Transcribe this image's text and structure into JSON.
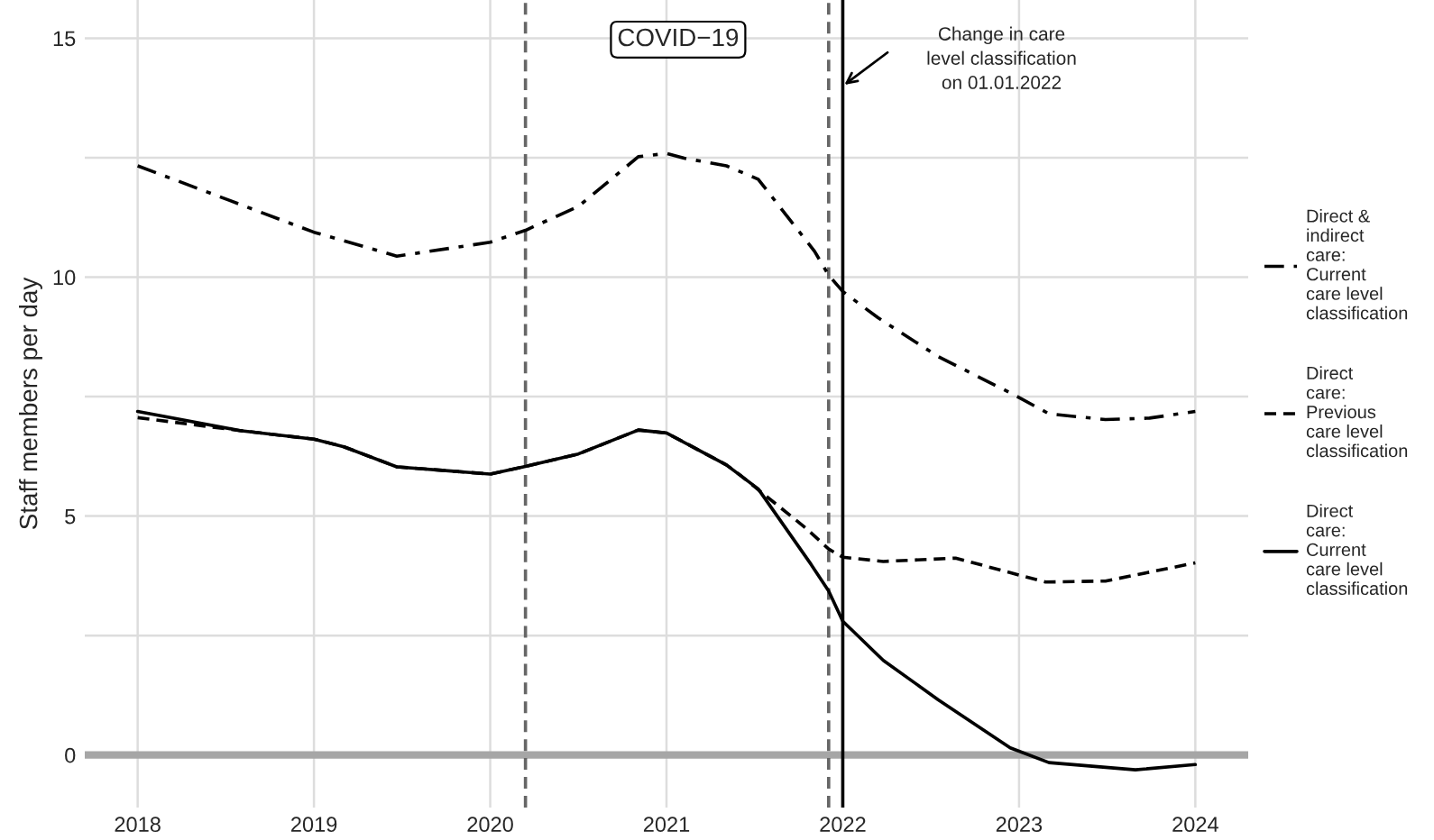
{
  "chart_data": {
    "type": "line",
    "ylabel": "Staff members per day",
    "xlim": [
      2017.7,
      2024.3
    ],
    "xticks": [
      2018,
      2019,
      2020,
      2021,
      2022,
      2023,
      2024
    ],
    "ylim": [
      -1.1,
      15.8
    ],
    "yticks": [
      0,
      {
        "value": 2.5,
        "label": null
      },
      5,
      {
        "value": 7.5,
        "label": null
      },
      10,
      {
        "value": 12.5,
        "label": null
      },
      15
    ],
    "grid": true,
    "legend": "right",
    "marker": "none",
    "series": [
      {
        "name": "Direct &\nindirect\ncare:\nCurrent\ncare level\nclassification",
        "color": "#000000",
        "line_style": "dashdot",
        "x": [
          2018.0,
          2019.0,
          2019.47,
          2020.0,
          2020.2,
          2020.5,
          2020.84,
          2021.0,
          2021.1,
          2021.34,
          2021.52,
          2021.84,
          2021.92,
          2022.0,
          2022.2,
          2022.54,
          2022.95,
          2023.17,
          2023.49,
          2023.74,
          2024.0
        ],
        "values": [
          12.33,
          10.94,
          10.44,
          10.73,
          10.98,
          11.48,
          12.52,
          12.59,
          12.49,
          12.33,
          12.05,
          10.54,
          10.04,
          9.7,
          9.15,
          8.34,
          7.58,
          7.14,
          7.02,
          7.05,
          7.19
        ]
      },
      {
        "name": "Direct\ncare:\nPrevious\ncare level\nclassification",
        "color": "#000000",
        "line_style": "dashed",
        "x": [
          2018.0,
          2018.58,
          2019.0,
          2019.17,
          2019.47,
          2020.0,
          2020.2,
          2020.5,
          2020.84,
          2021.0,
          2021.34,
          2021.41,
          2021.79,
          2021.92,
          2022.0,
          2022.23,
          2022.64,
          2023.15,
          2023.49,
          2024.0
        ],
        "values": [
          7.06,
          6.79,
          6.61,
          6.45,
          6.03,
          5.88,
          6.04,
          6.3,
          6.8,
          6.74,
          6.07,
          5.88,
          4.75,
          4.31,
          4.14,
          4.05,
          4.12,
          3.62,
          3.64,
          4.02
        ]
      },
      {
        "name": "Direct\ncare:\nCurrent\ncare level\nclassification",
        "color": "#000000",
        "line_style": "solid",
        "x": [
          2018.0,
          2018.58,
          2019.0,
          2019.17,
          2019.47,
          2020.0,
          2020.2,
          2020.5,
          2020.84,
          2021.0,
          2021.34,
          2021.52,
          2021.82,
          2021.92,
          2022.0,
          2022.23,
          2022.54,
          2022.95,
          2023.17,
          2023.66,
          2024.0
        ],
        "values": [
          7.19,
          6.79,
          6.61,
          6.45,
          6.03,
          5.88,
          6.04,
          6.3,
          6.8,
          6.74,
          6.07,
          5.57,
          3.99,
          3.43,
          2.8,
          1.98,
          1.16,
          0.15,
          -0.16,
          -0.31,
          -0.2
        ]
      }
    ],
    "ref_lines": [
      {
        "axis": "y",
        "value": 0,
        "color": "#a6a6a6",
        "line_style": "solid"
      },
      {
        "axis": "x",
        "value": 2020.2,
        "color": "#666666",
        "line_style": "dashed"
      },
      {
        "axis": "x",
        "value": 2021.92,
        "color": "#666666",
        "line_style": "dashed"
      },
      {
        "axis": "x",
        "value": 2022.0,
        "color": "#000000",
        "line_style": "solid"
      }
    ],
    "annotations": [
      "COVID−19",
      "Change in care\nlevel classification\non 01.01.2022"
    ]
  }
}
